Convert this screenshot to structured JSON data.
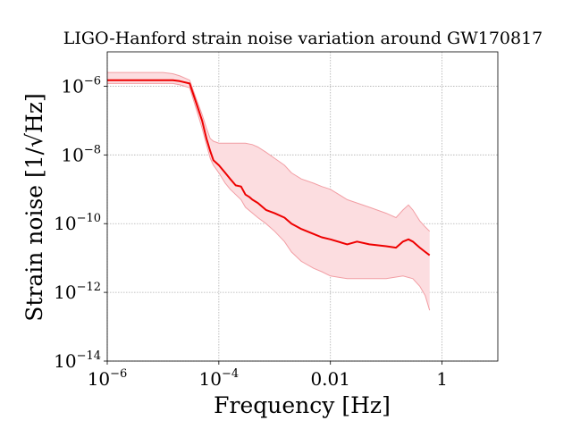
{
  "chart_data": {
    "type": "line",
    "title": "LIGO-Hanford strain noise variation around GW170817",
    "xlabel": "Frequency [Hz]",
    "ylabel": "Strain noise [1/√Hz]",
    "xscale": "log",
    "yscale": "log",
    "xlim": [
      1e-06,
      10
    ],
    "ylim": [
      1e-14,
      1e-05
    ],
    "grid": true,
    "x_ticks": [
      {
        "value": 1e-06,
        "base": "10",
        "exp": "−6"
      },
      {
        "value": 0.0001,
        "base": "10",
        "exp": "−4"
      },
      {
        "value": 0.01,
        "base": "0.01",
        "exp": ""
      },
      {
        "value": 1,
        "base": "1",
        "exp": ""
      }
    ],
    "y_ticks": [
      {
        "value": 1e-14,
        "base": "10",
        "exp": "−14"
      },
      {
        "value": 1e-12,
        "base": "10",
        "exp": "−12"
      },
      {
        "value": 1e-10,
        "base": "10",
        "exp": "−10"
      },
      {
        "value": 1e-08,
        "base": "10",
        "exp": "−8"
      },
      {
        "value": 1e-06,
        "base": "10",
        "exp": "−6"
      }
    ],
    "colors": {
      "line": "#ee0000",
      "band": "#f8b4b8",
      "band_edge": "#f29ea4",
      "envelope_fill": "#fcdde0"
    },
    "series": [
      {
        "role": "median",
        "points": [
          [
            1e-06,
            1.5e-06
          ],
          [
            2e-06,
            1.5e-06
          ],
          [
            5e-06,
            1.5e-06
          ],
          [
            1e-05,
            1.5e-06
          ],
          [
            1.5e-05,
            1.5e-06
          ],
          [
            2e-05,
            1.4e-06
          ],
          [
            3e-05,
            1.2e-06
          ],
          [
            4e-05,
            3e-07
          ],
          [
            5e-05,
            1e-07
          ],
          [
            6e-05,
            3e-08
          ],
          [
            7e-05,
            1.3e-08
          ],
          [
            8e-05,
            7e-09
          ],
          [
            0.0001,
            5e-09
          ],
          [
            0.00013,
            3e-09
          ],
          [
            0.00016,
            2e-09
          ],
          [
            0.0002,
            1.3e-09
          ],
          [
            0.00025,
            1.2e-09
          ],
          [
            0.0003,
            7e-10
          ],
          [
            0.00035,
            6e-10
          ],
          [
            0.0004,
            5e-10
          ],
          [
            0.0005,
            4e-10
          ],
          [
            0.0007,
            2.5e-10
          ],
          [
            0.001,
            2e-10
          ],
          [
            0.0015,
            1.5e-10
          ],
          [
            0.002,
            1e-10
          ],
          [
            0.003,
            7e-11
          ],
          [
            0.005,
            5e-11
          ],
          [
            0.007,
            4e-11
          ],
          [
            0.01,
            3.5e-11
          ],
          [
            0.02,
            2.5e-11
          ],
          [
            0.03,
            3e-11
          ],
          [
            0.05,
            2.5e-11
          ],
          [
            0.1,
            2.2e-11
          ],
          [
            0.15,
            2e-11
          ],
          [
            0.2,
            3e-11
          ],
          [
            0.25,
            3.5e-11
          ],
          [
            0.3,
            3e-11
          ],
          [
            0.4,
            2e-11
          ],
          [
            0.5,
            1.5e-11
          ],
          [
            0.6,
            1.2e-11
          ]
        ]
      },
      {
        "role": "upper",
        "points": [
          [
            1e-06,
            2.5e-06
          ],
          [
            2e-06,
            2.5e-06
          ],
          [
            5e-06,
            2.5e-06
          ],
          [
            1e-05,
            2.5e-06
          ],
          [
            1.5e-05,
            2.3e-06
          ],
          [
            2e-05,
            2e-06
          ],
          [
            3e-05,
            1.5e-06
          ],
          [
            4e-05,
            4e-07
          ],
          [
            5e-05,
            1.5e-07
          ],
          [
            6e-05,
            6e-08
          ],
          [
            7e-05,
            3e-08
          ],
          [
            8e-05,
            2.5e-08
          ],
          [
            0.0001,
            2.2e-08
          ],
          [
            0.00013,
            2.2e-08
          ],
          [
            0.00016,
            2.2e-08
          ],
          [
            0.0002,
            2.2e-08
          ],
          [
            0.0003,
            2.2e-08
          ],
          [
            0.0004,
            2e-08
          ],
          [
            0.0005,
            1.7e-08
          ],
          [
            0.0007,
            1.2e-08
          ],
          [
            0.001,
            8e-09
          ],
          [
            0.0015,
            5e-09
          ],
          [
            0.002,
            3e-09
          ],
          [
            0.003,
            2e-09
          ],
          [
            0.005,
            1.5e-09
          ],
          [
            0.007,
            1.2e-09
          ],
          [
            0.01,
            1e-09
          ],
          [
            0.02,
            5e-10
          ],
          [
            0.05,
            3e-10
          ],
          [
            0.1,
            2e-10
          ],
          [
            0.15,
            1.5e-10
          ],
          [
            0.2,
            2.5e-10
          ],
          [
            0.25,
            3.5e-10
          ],
          [
            0.3,
            2.5e-10
          ],
          [
            0.4,
            1.2e-10
          ],
          [
            0.5,
            8e-11
          ],
          [
            0.6,
            6e-11
          ]
        ]
      },
      {
        "role": "lower",
        "points": [
          [
            1e-06,
            1.2e-06
          ],
          [
            2e-06,
            1.2e-06
          ],
          [
            5e-06,
            1.2e-06
          ],
          [
            1e-05,
            1.2e-06
          ],
          [
            1.5e-05,
            1.2e-06
          ],
          [
            2e-05,
            1.1e-06
          ],
          [
            3e-05,
            9e-07
          ],
          [
            4e-05,
            2e-07
          ],
          [
            5e-05,
            6e-08
          ],
          [
            6e-05,
            2e-08
          ],
          [
            7e-05,
            8e-09
          ],
          [
            8e-05,
            5e-09
          ],
          [
            0.0001,
            3e-09
          ],
          [
            0.00013,
            1.5e-09
          ],
          [
            0.00016,
            1e-09
          ],
          [
            0.0002,
            7e-10
          ],
          [
            0.00025,
            5e-10
          ],
          [
            0.0003,
            3e-10
          ],
          [
            0.0005,
            1.5e-10
          ],
          [
            0.0007,
            1e-10
          ],
          [
            0.001,
            6e-11
          ],
          [
            0.0015,
            3e-11
          ],
          [
            0.002,
            1.5e-11
          ],
          [
            0.003,
            8e-12
          ],
          [
            0.005,
            5e-12
          ],
          [
            0.007,
            4e-12
          ],
          [
            0.01,
            3e-12
          ],
          [
            0.02,
            2.5e-12
          ],
          [
            0.05,
            2.5e-12
          ],
          [
            0.1,
            2.5e-12
          ],
          [
            0.2,
            3e-12
          ],
          [
            0.3,
            2.5e-12
          ],
          [
            0.4,
            1.5e-12
          ],
          [
            0.5,
            8e-13
          ],
          [
            0.6,
            3e-13
          ]
        ]
      }
    ]
  }
}
